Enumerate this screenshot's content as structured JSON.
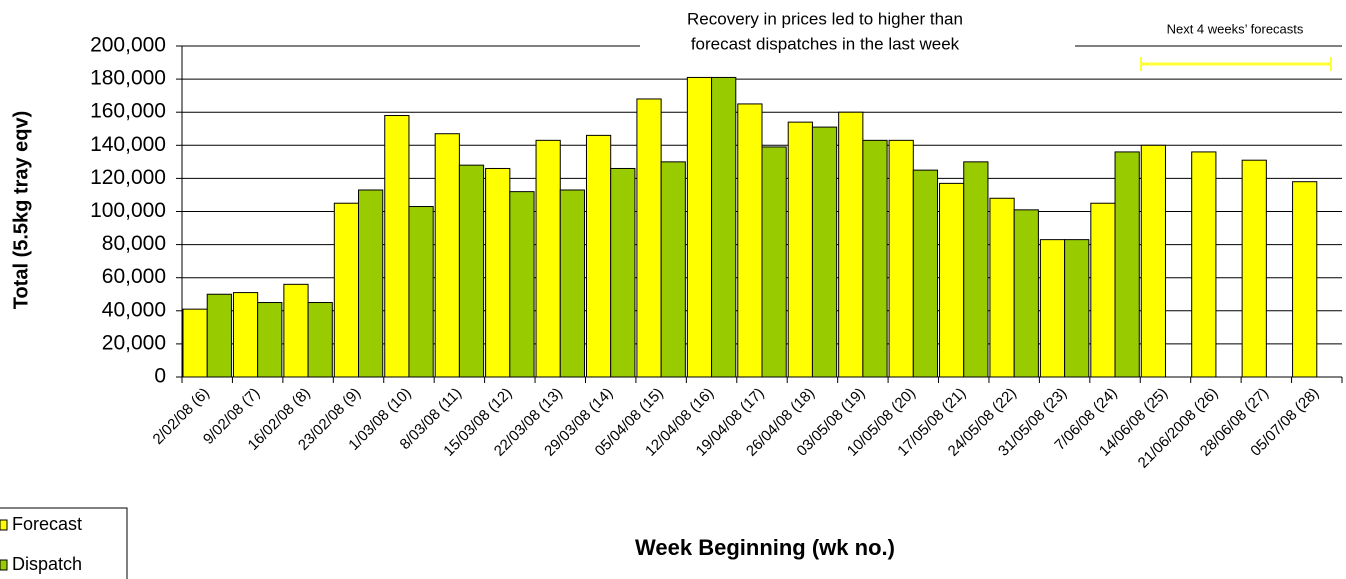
{
  "chart_data": {
    "type": "bar",
    "ylabel": "Total (5.5kg tray eqv)",
    "xlabel": "Week Beginning (wk no.)",
    "annotation": [
      "Recovery in prices led to higher than",
      "forecast dispatches in the last week"
    ],
    "forecast_note": "Next 4 weeks’ forecasts",
    "categories": [
      "2/02/08 (6)",
      "9/02/08 (7)",
      "16/02/08 (8)",
      "23/02/08 (9)",
      "1/03/08 (10)",
      "8/03/08 (11)",
      "15/03/08 (12)",
      "22/03/08 (13)",
      "29/03/08 (14)",
      "05/04/08 (15)",
      "12/04/08 (16)",
      "19/04/08 (17)",
      "26/04/08 (18)",
      "03/05/08 (19)",
      "10/05/08 (20)",
      "17/05/08 (21)",
      "24/05/08 (22)",
      "31/05/08 (23)",
      "7/06/08 (24)",
      "14/06/08 (25)",
      "21/06/2008 (26)",
      "28/06/08 (27)",
      "05/07/08 (28)"
    ],
    "series": [
      {
        "name": "Forecast",
        "color": "#ffff00",
        "values": [
          41000,
          51000,
          56000,
          105000,
          158000,
          147000,
          126000,
          143000,
          146000,
          168000,
          181000,
          165000,
          154000,
          160000,
          143000,
          117000,
          108000,
          83000,
          105000,
          140000,
          136000,
          131000,
          118000
        ]
      },
      {
        "name": "Dispatch",
        "color": "#99cc00",
        "values": [
          50000,
          45000,
          45000,
          113000,
          103000,
          128000,
          112000,
          113000,
          126000,
          130000,
          181000,
          139000,
          151000,
          143000,
          125000,
          130000,
          101000,
          83000,
          136000,
          null,
          null,
          null,
          null
        ]
      }
    ],
    "ylim": [
      0,
      200000
    ],
    "yticks": [
      0,
      {
        "value": 20000,
        "label": "20,000"
      },
      {
        "value": 40000,
        "label": "40,000"
      },
      {
        "value": 60000,
        "label": "60,000"
      },
      {
        "value": 80000,
        "label": "80,000"
      },
      {
        "value": 100000,
        "label": "100,000"
      },
      {
        "value": 120000,
        "label": "120,000"
      },
      {
        "value": 140000,
        "label": "140,000"
      },
      {
        "value": 160000,
        "label": "160,000"
      },
      {
        "value": 180000,
        "label": "180,000"
      },
      {
        "value": 200000,
        "label": "200,000"
      }
    ],
    "grid": true,
    "legend": "bottom-left"
  }
}
